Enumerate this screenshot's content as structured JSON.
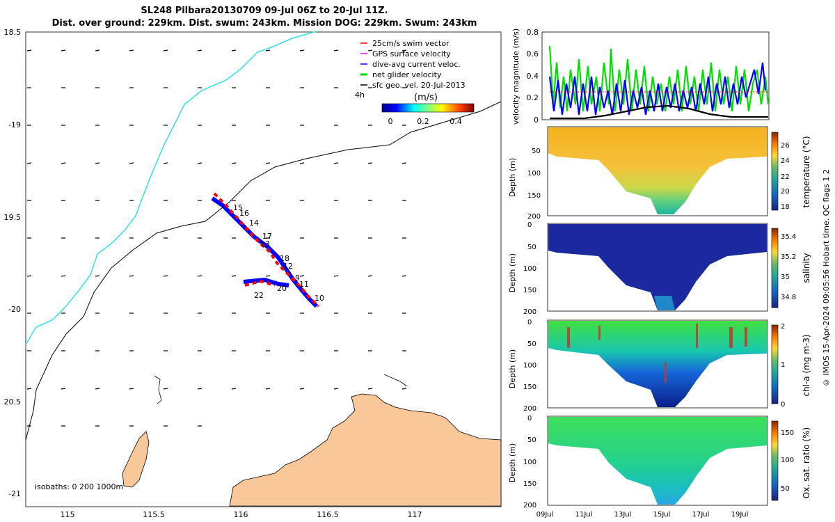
{
  "header": {
    "title": "SL248 Pilbara20130709 09-Jul 06Z to 20-Jul 11Z.",
    "subtitle": "Dist. over ground: 229km. Dist. swum: 243km. Mission DOG: 229km. Swum: 243km"
  },
  "footer": "© IMOS 15-Apr-2024 09:05:56 Hobart time. QC flags 1  2",
  "colors": {
    "coast_fill": "#f8c89a",
    "cyan_isobath": "#33e0e8",
    "swim_red": "#ff0000",
    "current_blue": "#0000ff",
    "net_green": "#00e000"
  },
  "map": {
    "lon_ticks": [
      "115",
      "115.5",
      "116",
      "116.5",
      "117"
    ],
    "lat_ticks": [
      "18.5",
      "-19",
      "19.5",
      "-20",
      "20.5",
      "-21"
    ],
    "legend": [
      {
        "label": "25cm/s swim vector",
        "color": "#ff0000"
      },
      {
        "label": "GPS surface velocity",
        "color": "#ff00ff"
      },
      {
        "label": "dive-avg current veloc.",
        "color": "#0000ff"
      },
      {
        "label": "net glider velocity",
        "color": "#00e000"
      },
      {
        "label": "sfc geo. vel. 20-Jul-2013",
        "color": "#000000"
      }
    ],
    "time_step_label": "4h",
    "colorbar_unit": "(m/s)",
    "colorbar_ticks": [
      "0",
      "0.2",
      "0.4"
    ],
    "isobaths_label": "isobaths: 0   200  1000m",
    "track_day_labels": [
      "15",
      "16",
      "14",
      "17",
      "13",
      "18",
      "12",
      "9",
      "11",
      "20",
      "22",
      "10"
    ]
  },
  "chart_data": [
    {
      "type": "line",
      "ylabel": "velocity magnitude (m/s)",
      "ylim": [
        0,
        0.8
      ],
      "y_ticks": [
        "0",
        "0.2",
        "0.4",
        "0.6",
        "0.8"
      ],
      "series": [
        {
          "name": "net glider velocity",
          "color": "#00e000"
        },
        {
          "name": "dive-avg current veloc.",
          "color": "#0000ff"
        },
        {
          "name": "sfc geo. vel.",
          "color": "#000000"
        }
      ]
    },
    {
      "type": "heatmap",
      "ylabel": "Depth (m)",
      "clabel": "temperature (°C)",
      "y_ticks": [
        "50",
        "100",
        "150",
        "200"
      ],
      "c_ticks": [
        "26",
        "24",
        "22",
        "20",
        "18"
      ]
    },
    {
      "type": "heatmap",
      "ylabel": "Depth (m)",
      "clabel": "salinity",
      "y_ticks": [
        "0",
        "50",
        "100",
        "150",
        "200"
      ],
      "c_ticks": [
        "35.4",
        "35.2",
        "35",
        "34.8"
      ]
    },
    {
      "type": "heatmap",
      "ylabel": "Depth (m)",
      "clabel": "chl-a (mg m-3)",
      "y_ticks": [
        "0",
        "50",
        "100",
        "150",
        "200"
      ],
      "c_ticks": [
        "2",
        "1",
        "0"
      ]
    },
    {
      "type": "heatmap",
      "ylabel": "Depth (m)",
      "clabel": "Ox. sat. ratio (%)",
      "y_ticks": [
        "0",
        "50",
        "100",
        "150",
        "200"
      ],
      "c_ticks": [
        "150",
        "100",
        "50"
      ],
      "x_ticks": [
        "09Jul",
        "11Jul",
        "13Jul",
        "15Jul",
        "17Jul",
        "19Jul"
      ]
    }
  ]
}
